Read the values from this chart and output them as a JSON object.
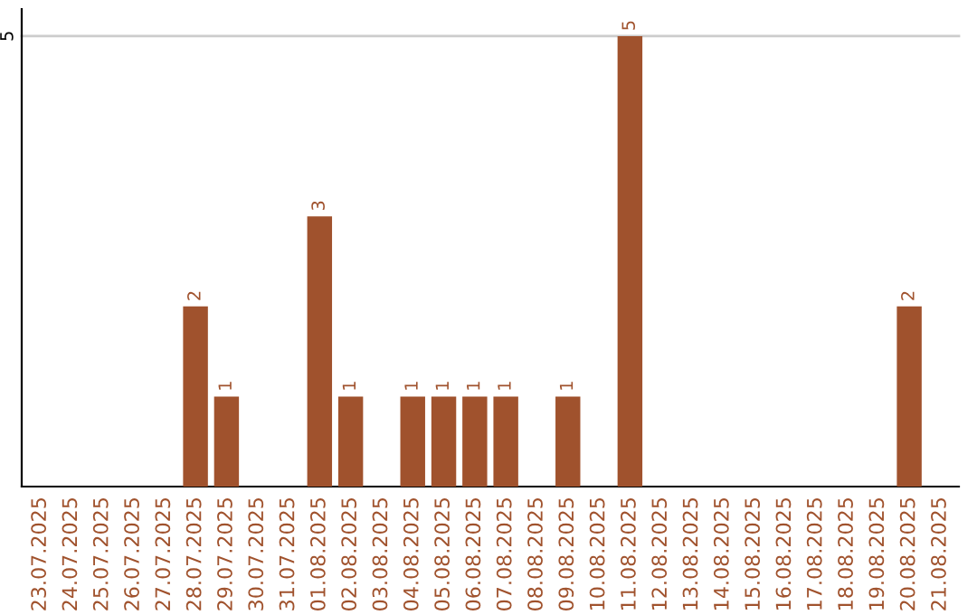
{
  "chart_data": {
    "type": "bar",
    "categories": [
      "23.07.2025",
      "24.07.2025",
      "25.07.2025",
      "26.07.2025",
      "27.07.2025",
      "28.07.2025",
      "29.07.2025",
      "30.07.2025",
      "31.07.2025",
      "01.08.2025",
      "02.08.2025",
      "03.08.2025",
      "04.08.2025",
      "05.08.2025",
      "06.08.2025",
      "07.08.2025",
      "08.08.2025",
      "09.08.2025",
      "10.08.2025",
      "11.08.2025",
      "12.08.2025",
      "13.08.2025",
      "14.08.2025",
      "15.08.2025",
      "16.08.2025",
      "17.08.2025",
      "18.08.2025",
      "19.08.2025",
      "20.08.2025",
      "21.08.2025"
    ],
    "values": [
      0,
      0,
      0,
      0,
      0,
      2,
      1,
      0,
      0,
      3,
      1,
      0,
      1,
      1,
      1,
      1,
      0,
      1,
      0,
      5,
      0,
      0,
      0,
      0,
      0,
      0,
      0,
      0,
      2,
      0
    ],
    "value_labels": [
      null,
      null,
      null,
      null,
      null,
      "2",
      "1",
      null,
      null,
      "3",
      "1",
      null,
      "1",
      "1",
      "1",
      "1",
      null,
      "1",
      null,
      "5",
      null,
      null,
      null,
      null,
      null,
      null,
      null,
      null,
      "2",
      null
    ],
    "color": "#a0522d",
    "ylim": [
      0,
      5.3
    ],
    "yticks": [
      5
    ],
    "grid": "y"
  }
}
